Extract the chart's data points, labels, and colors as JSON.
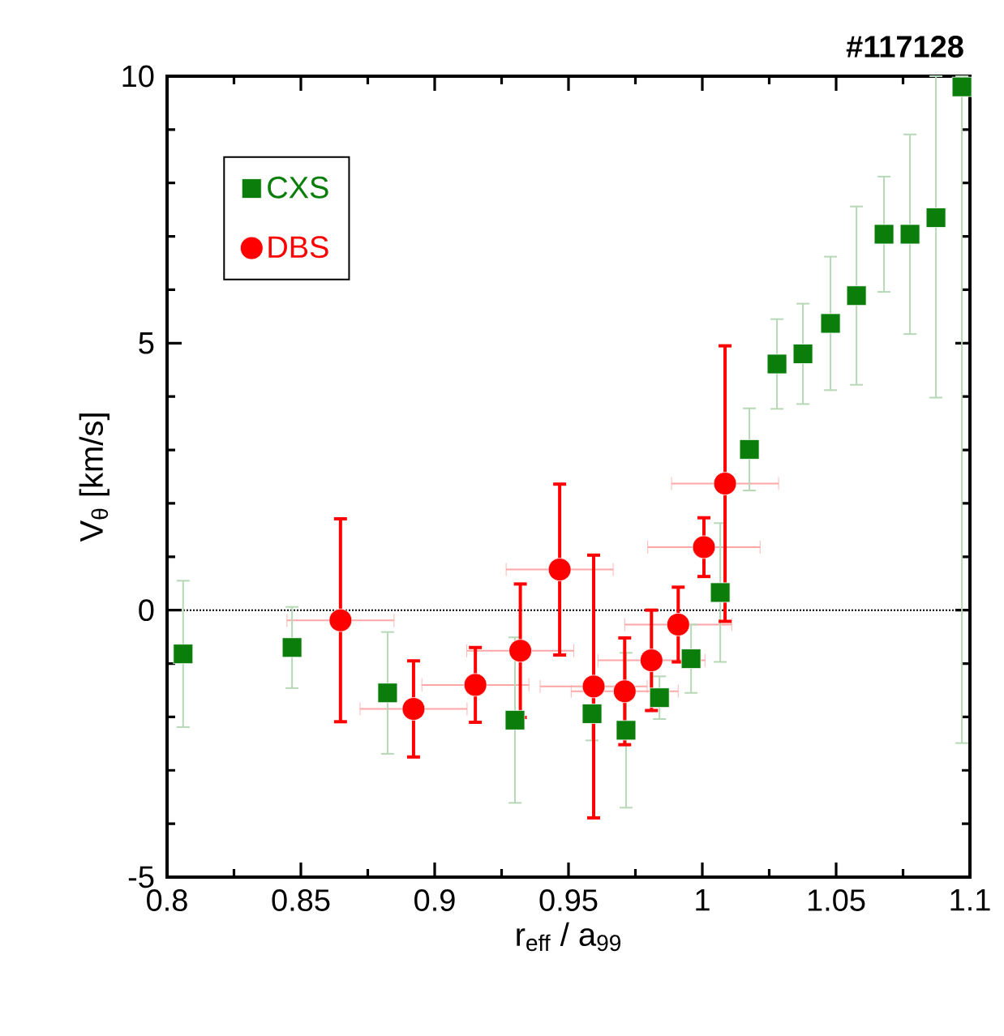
{
  "chart_data": {
    "type": "scatter",
    "title": "#117128",
    "xlabel": "r$_{eff}$ / a$_{99}$",
    "ylabel": "V$_{θ}$ [km/s]",
    "xlim": [
      0.8,
      1.1
    ],
    "ylim": [
      -5,
      10
    ],
    "xticks": [
      0.8,
      0.85,
      0.9,
      0.95,
      1,
      1.05,
      1.1
    ],
    "yticks": [
      -5,
      0,
      5,
      10
    ],
    "legend": "top left",
    "grid": false,
    "ref_lines": [
      {
        "axis": "y",
        "value": 0,
        "line_style": "dotted"
      }
    ],
    "series": [
      {
        "name": "CXS",
        "color": "#0a7d0a",
        "marker": "square",
        "x": [
          0.806,
          0.8467,
          0.8824,
          0.93,
          0.9588,
          0.9715,
          0.984,
          0.9958,
          1.0067,
          1.0176,
          1.0279,
          1.0376,
          1.0479,
          1.0576,
          1.0679,
          1.0776,
          1.0873,
          1.097
        ],
        "values": [
          -0.82,
          -0.7,
          -1.55,
          -2.06,
          -1.94,
          -2.25,
          -1.64,
          -0.91,
          0.33,
          3.01,
          4.61,
          4.8,
          5.37,
          5.89,
          7.04,
          7.04,
          7.35,
          9.8
        ],
        "errors": [
          1.37,
          0.76,
          1.14,
          1.55,
          0.5,
          1.45,
          0.4,
          0.64,
          1.3,
          0.77,
          0.84,
          0.94,
          1.25,
          1.67,
          1.08,
          1.87,
          [
            3.98,
            10
          ],
          [
            -2.49,
            10
          ]
        ]
      },
      {
        "name": "DBS",
        "color": "#ff0000",
        "marker": "circle",
        "x": [
          0.8648,
          0.8921,
          0.9152,
          0.932,
          0.9467,
          0.9594,
          0.971,
          0.981,
          0.991,
          1.0006,
          1.0085
        ],
        "values": [
          -0.19,
          -1.85,
          -1.4,
          -0.76,
          0.76,
          -1.43,
          -1.52,
          -0.94,
          -0.27,
          1.18,
          2.37
        ],
        "errors": [
          1.9,
          0.9,
          0.7,
          1.25,
          1.6,
          2.46,
          1.0,
          0.94,
          0.7,
          0.55,
          2.58
        ],
        "xerrors": [
          0.02,
          0.02,
          0.02,
          0.02,
          0.02,
          0.02,
          0.02,
          0.02,
          0.02,
          0.021,
          0.02
        ]
      }
    ]
  }
}
